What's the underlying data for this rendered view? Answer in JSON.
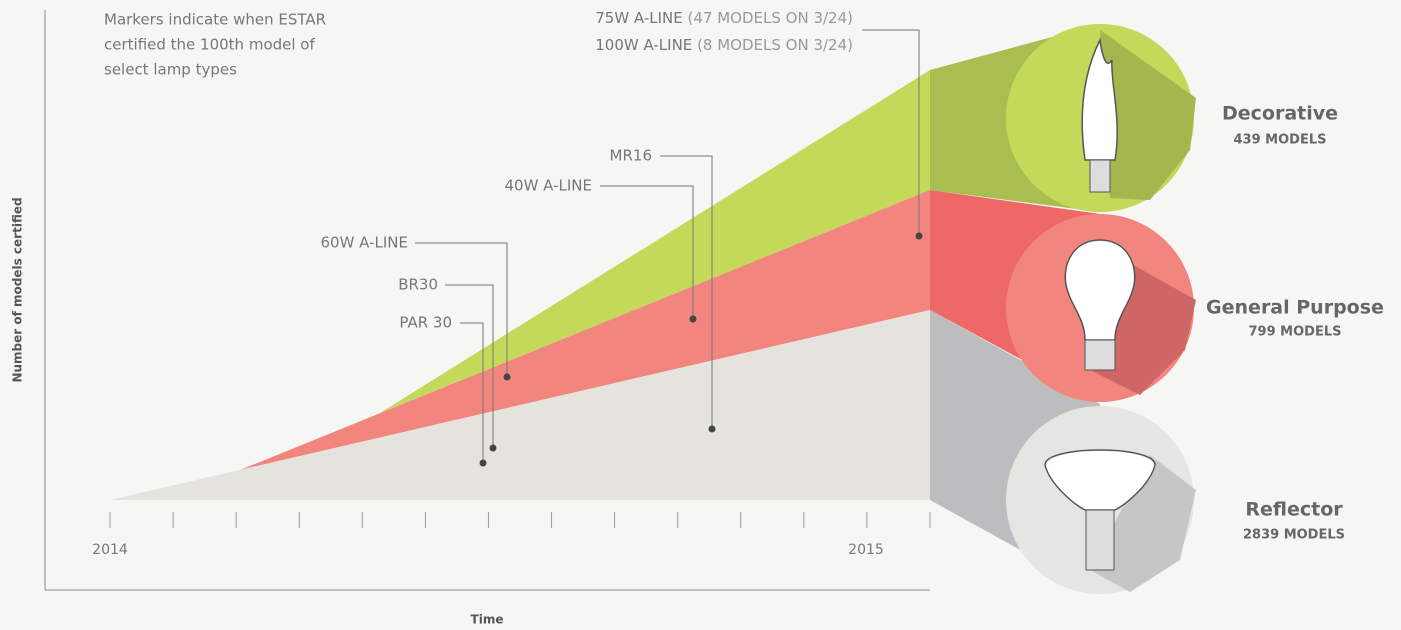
{
  "note": [
    "Markers indicate when ESTAR",
    "certified the 100th model of",
    "select lamp types"
  ],
  "axes": {
    "y_label": "Number of models certified",
    "x_label": "Time",
    "x_ticks": [
      "2014",
      "2015"
    ]
  },
  "markers": [
    {
      "label": "PAR 30"
    },
    {
      "label": "BR30"
    },
    {
      "label": "60W A-LINE"
    },
    {
      "label": "40W A-LINE"
    },
    {
      "label": "MR16"
    },
    {
      "label": "75W A-LINE",
      "detail": "(47 MODELS ON 3/24)"
    },
    {
      "label": "100W A-LINE",
      "detail": "(8 MODELS ON 3/24)"
    }
  ],
  "lamp_types": [
    {
      "name": "Decorative",
      "count": "439 MODELS"
    },
    {
      "name": "General Purpose",
      "count": "799 MODELS"
    },
    {
      "name": "Reflector",
      "count": "2839 MODELS"
    }
  ]
}
